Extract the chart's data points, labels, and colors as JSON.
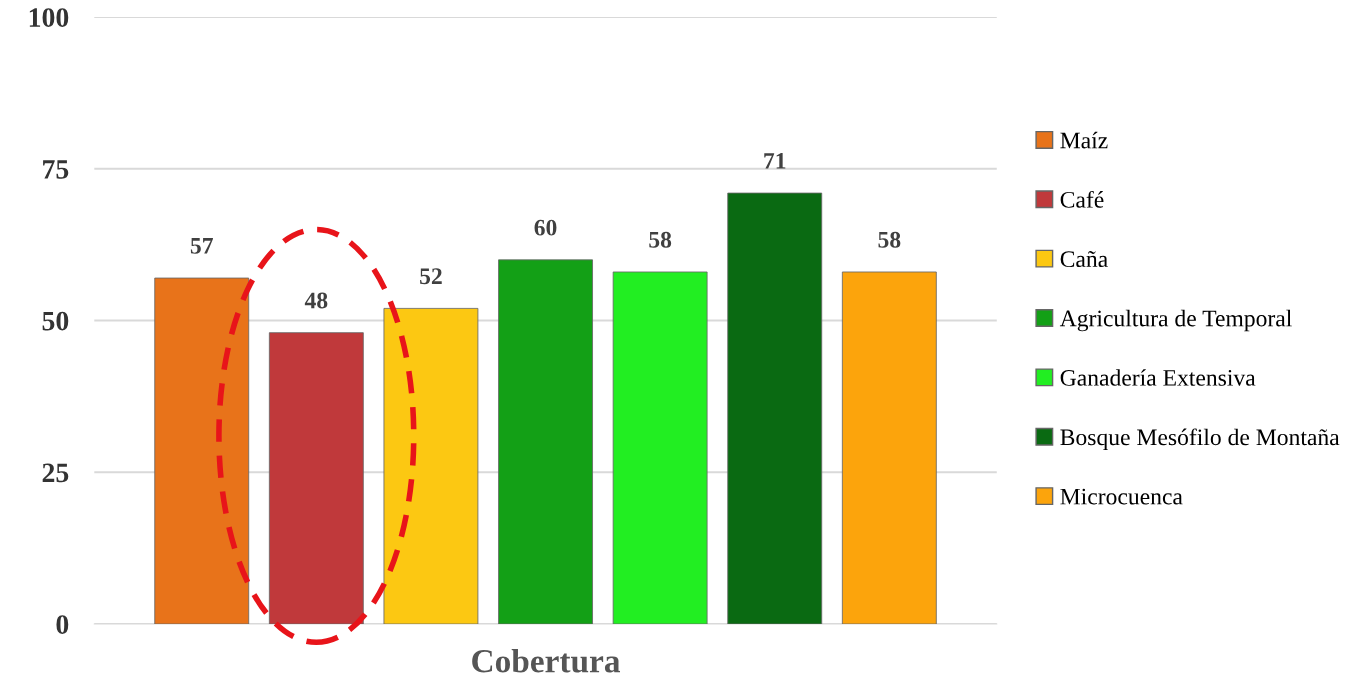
{
  "chart_data": {
    "type": "bar",
    "categories": [
      "Cobertura"
    ],
    "series": [
      {
        "name": "Maíz",
        "color": "#e8731a",
        "values": [
          57
        ]
      },
      {
        "name": "Café",
        "color": "#c0393b",
        "values": [
          48
        ]
      },
      {
        "name": "Caña",
        "color": "#fcc812",
        "values": [
          52
        ]
      },
      {
        "name": "Agricultura de Temporal",
        "color": "#13a016",
        "values": [
          60
        ]
      },
      {
        "name": "Ganadería Extensiva",
        "color": "#22ee22",
        "values": [
          58
        ]
      },
      {
        "name": "Bosque Mesófilo de Montaña",
        "color": "#0a6a12",
        "values": [
          71
        ]
      },
      {
        "name": "Microcuenca",
        "color": "#fca40c",
        "values": [
          58
        ]
      }
    ],
    "ylim": [
      0,
      100
    ],
    "yticks": [
      0,
      25,
      50,
      75,
      100
    ],
    "grid": "y",
    "legend": "right",
    "data_labels": true
  }
}
